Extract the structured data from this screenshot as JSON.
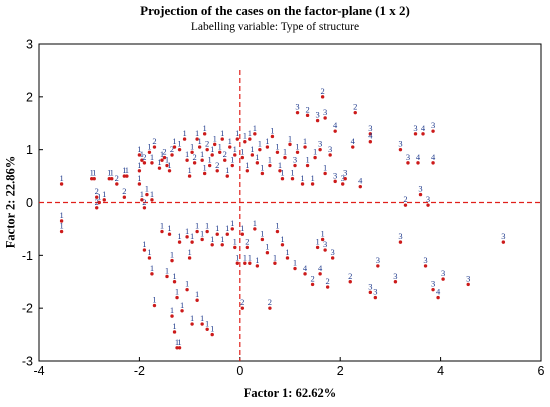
{
  "chart_data": {
    "type": "scatter",
    "title": "Projection of the cases on the factor-plane (1 x 2)",
    "subtitle": "Labelling variable: Type of structure",
    "xlabel": "Factor 1: 62.62%",
    "ylabel": "Factor 2: 22.86%",
    "xlim": [
      -4,
      6
    ],
    "ylim": [
      -3,
      3
    ],
    "xticks": [
      -4,
      -2,
      0,
      2,
      4,
      6
    ],
    "yticks": [
      -3,
      -2,
      -1,
      0,
      1,
      2,
      3
    ],
    "reference_lines": {
      "x": 0,
      "y": 0,
      "style": "dashed",
      "color": "#e0201b"
    },
    "grid": false,
    "legend": "none",
    "colors": {
      "point": "#cc1a1a",
      "label": "#1f3a8c",
      "axis": "#000000"
    },
    "points": [
      {
        "x": -3.55,
        "y": 0.35,
        "label": "1"
      },
      {
        "x": -3.55,
        "y": -0.35,
        "label": "1"
      },
      {
        "x": -3.55,
        "y": -0.55,
        "label": "1"
      },
      {
        "x": -2.95,
        "y": 0.45,
        "label": "1"
      },
      {
        "x": -2.9,
        "y": 0.45,
        "label": "1"
      },
      {
        "x": -2.85,
        "y": 0.1,
        "label": "2"
      },
      {
        "x": -2.85,
        "y": -0.1,
        "label": "2"
      },
      {
        "x": -2.8,
        "y": 0.0,
        "label": "1"
      },
      {
        "x": -2.7,
        "y": 0.05,
        "label": "1"
      },
      {
        "x": -2.6,
        "y": 0.45,
        "label": "1"
      },
      {
        "x": -2.55,
        "y": 0.45,
        "label": "1"
      },
      {
        "x": -2.45,
        "y": 0.35,
        "label": "2"
      },
      {
        "x": -2.3,
        "y": 0.1,
        "label": "2"
      },
      {
        "x": -2.3,
        "y": 0.5,
        "label": "1"
      },
      {
        "x": -2.25,
        "y": 0.5,
        "label": "1"
      },
      {
        "x": -2.0,
        "y": 0.6,
        "label": "1"
      },
      {
        "x": -2.0,
        "y": 0.35,
        "label": "1"
      },
      {
        "x": -1.95,
        "y": 0.05,
        "label": "1"
      },
      {
        "x": -1.9,
        "y": -0.1,
        "label": "2"
      },
      {
        "x": -1.85,
        "y": 0.15,
        "label": "1"
      },
      {
        "x": -2.0,
        "y": 0.9,
        "label": "1"
      },
      {
        "x": -1.95,
        "y": 0.8,
        "label": "1"
      },
      {
        "x": -1.9,
        "y": 0.75,
        "label": "2"
      },
      {
        "x": -1.75,
        "y": 0.75,
        "label": "1"
      },
      {
        "x": -1.75,
        "y": 0.05,
        "label": "1"
      },
      {
        "x": -1.8,
        "y": 0.95,
        "label": "1"
      },
      {
        "x": -1.7,
        "y": 1.05,
        "label": "2"
      },
      {
        "x": -1.6,
        "y": 0.65,
        "label": "1"
      },
      {
        "x": -1.55,
        "y": 0.8,
        "label": "1"
      },
      {
        "x": -1.5,
        "y": 0.85,
        "label": "2"
      },
      {
        "x": -1.45,
        "y": 0.7,
        "label": "1"
      },
      {
        "x": -1.4,
        "y": 0.6,
        "label": "1"
      },
      {
        "x": -1.35,
        "y": 0.9,
        "label": "2"
      },
      {
        "x": -1.3,
        "y": 1.05,
        "label": "1"
      },
      {
        "x": -1.2,
        "y": 1.0,
        "label": "1"
      },
      {
        "x": -1.1,
        "y": 1.2,
        "label": "1"
      },
      {
        "x": -1.05,
        "y": 0.8,
        "label": "1"
      },
      {
        "x": -1.0,
        "y": 0.5,
        "label": "1"
      },
      {
        "x": -0.95,
        "y": 0.95,
        "label": "1"
      },
      {
        "x": -0.9,
        "y": 0.75,
        "label": "2"
      },
      {
        "x": -0.85,
        "y": 1.2,
        "label": "1"
      },
      {
        "x": -0.8,
        "y": 1.05,
        "label": "1"
      },
      {
        "x": -0.75,
        "y": 0.8,
        "label": "1"
      },
      {
        "x": -0.7,
        "y": 0.55,
        "label": "1"
      },
      {
        "x": -0.7,
        "y": 1.3,
        "label": "1"
      },
      {
        "x": -0.65,
        "y": 1.0,
        "label": "2"
      },
      {
        "x": -0.6,
        "y": 0.7,
        "label": "1"
      },
      {
        "x": -0.55,
        "y": 0.9,
        "label": "1"
      },
      {
        "x": -0.5,
        "y": 1.1,
        "label": "1"
      },
      {
        "x": -0.45,
        "y": 0.6,
        "label": "2"
      },
      {
        "x": -0.4,
        "y": 0.95,
        "label": "1"
      },
      {
        "x": -0.35,
        "y": 1.2,
        "label": "1"
      },
      {
        "x": -0.3,
        "y": 0.8,
        "label": "2"
      },
      {
        "x": -0.25,
        "y": 0.5,
        "label": "1"
      },
      {
        "x": -0.2,
        "y": 1.05,
        "label": "1"
      },
      {
        "x": -0.15,
        "y": 0.7,
        "label": "1"
      },
      {
        "x": -0.1,
        "y": 0.9,
        "label": "1"
      },
      {
        "x": -0.05,
        "y": 1.2,
        "label": "1"
      },
      {
        "x": 0.05,
        "y": 0.85,
        "label": "1"
      },
      {
        "x": 0.1,
        "y": 1.15,
        "label": "1"
      },
      {
        "x": 0.15,
        "y": 0.6,
        "label": "1"
      },
      {
        "x": 0.2,
        "y": 1.2,
        "label": "1"
      },
      {
        "x": 0.25,
        "y": 0.9,
        "label": "1"
      },
      {
        "x": 0.3,
        "y": 1.3,
        "label": "1"
      },
      {
        "x": 0.35,
        "y": 0.75,
        "label": "1"
      },
      {
        "x": 0.4,
        "y": 1.0,
        "label": "1"
      },
      {
        "x": 0.45,
        "y": 0.55,
        "label": "1"
      },
      {
        "x": 0.55,
        "y": 1.05,
        "label": "1"
      },
      {
        "x": 0.6,
        "y": 0.7,
        "label": "1"
      },
      {
        "x": 0.65,
        "y": 1.25,
        "label": "1"
      },
      {
        "x": 0.75,
        "y": 0.95,
        "label": "1"
      },
      {
        "x": 0.8,
        "y": 0.6,
        "label": "1"
      },
      {
        "x": 0.85,
        "y": 0.45,
        "label": "1"
      },
      {
        "x": 0.9,
        "y": 0.85,
        "label": "1"
      },
      {
        "x": 1.0,
        "y": 1.1,
        "label": "1"
      },
      {
        "x": 1.05,
        "y": 0.45,
        "label": "1"
      },
      {
        "x": 1.1,
        "y": 0.7,
        "label": "3"
      },
      {
        "x": 1.15,
        "y": 0.95,
        "label": "1"
      },
      {
        "x": 1.25,
        "y": 0.35,
        "label": "1"
      },
      {
        "x": 1.3,
        "y": 1.05,
        "label": "1"
      },
      {
        "x": 1.35,
        "y": 0.7,
        "label": "1"
      },
      {
        "x": 1.45,
        "y": 0.35,
        "label": "1"
      },
      {
        "x": 1.5,
        "y": 0.85,
        "label": "1"
      },
      {
        "x": 1.6,
        "y": 1.0,
        "label": "3"
      },
      {
        "x": 1.7,
        "y": 0.55,
        "label": "1"
      },
      {
        "x": 1.8,
        "y": 0.9,
        "label": "3"
      },
      {
        "x": 1.9,
        "y": 0.4,
        "label": "3"
      },
      {
        "x": 2.05,
        "y": 0.35,
        "label": "3"
      },
      {
        "x": 2.4,
        "y": 0.3,
        "label": "4"
      },
      {
        "x": 2.1,
        "y": 0.45,
        "label": "3"
      },
      {
        "x": 1.15,
        "y": 1.7,
        "label": "3"
      },
      {
        "x": 1.35,
        "y": 1.65,
        "label": "2"
      },
      {
        "x": 1.55,
        "y": 1.55,
        "label": "3"
      },
      {
        "x": 1.7,
        "y": 1.6,
        "label": "3"
      },
      {
        "x": 1.65,
        "y": 2.0,
        "label": "2"
      },
      {
        "x": 1.9,
        "y": 1.35,
        "label": "4"
      },
      {
        "x": 2.3,
        "y": 1.7,
        "label": "2"
      },
      {
        "x": 2.25,
        "y": 1.05,
        "label": "4"
      },
      {
        "x": 2.6,
        "y": 1.3,
        "label": "3"
      },
      {
        "x": 2.6,
        "y": 1.15,
        "label": "4"
      },
      {
        "x": 3.2,
        "y": 1.0,
        "label": "3"
      },
      {
        "x": 3.35,
        "y": 0.75,
        "label": "3"
      },
      {
        "x": 3.55,
        "y": 0.75,
        "label": "4"
      },
      {
        "x": 3.85,
        "y": 0.75,
        "label": "4"
      },
      {
        "x": 3.5,
        "y": 1.3,
        "label": "3"
      },
      {
        "x": 3.65,
        "y": 1.3,
        "label": "4"
      },
      {
        "x": 3.85,
        "y": 1.35,
        "label": "3"
      },
      {
        "x": 3.6,
        "y": 0.15,
        "label": "3"
      },
      {
        "x": 3.3,
        "y": -0.05,
        "label": "2"
      },
      {
        "x": 3.75,
        "y": -0.05,
        "label": "3"
      },
      {
        "x": 3.2,
        "y": -0.75,
        "label": "3"
      },
      {
        "x": 3.7,
        "y": -1.2,
        "label": "3"
      },
      {
        "x": 3.1,
        "y": -1.5,
        "label": "3"
      },
      {
        "x": 4.05,
        "y": -1.45,
        "label": "3"
      },
      {
        "x": 4.55,
        "y": -1.55,
        "label": "3"
      },
      {
        "x": 3.85,
        "y": -1.65,
        "label": "3"
      },
      {
        "x": 3.95,
        "y": -1.8,
        "label": "4"
      },
      {
        "x": 5.25,
        "y": -0.75,
        "label": "3"
      },
      {
        "x": 2.6,
        "y": -1.7,
        "label": "3"
      },
      {
        "x": 2.7,
        "y": -1.8,
        "label": "3"
      },
      {
        "x": 2.75,
        "y": -1.2,
        "label": "3"
      },
      {
        "x": 2.2,
        "y": -1.5,
        "label": "2"
      },
      {
        "x": 1.75,
        "y": -1.6,
        "label": "2"
      },
      {
        "x": 1.6,
        "y": -1.35,
        "label": "4"
      },
      {
        "x": 1.45,
        "y": -1.55,
        "label": "2"
      },
      {
        "x": 1.3,
        "y": -1.35,
        "label": "4"
      },
      {
        "x": 1.85,
        "y": -1.05,
        "label": "3"
      },
      {
        "x": 1.7,
        "y": -0.9,
        "label": "3"
      },
      {
        "x": 1.55,
        "y": -0.85,
        "label": "1"
      },
      {
        "x": 1.65,
        "y": -0.7,
        "label": "1"
      },
      {
        "x": 1.1,
        "y": -1.25,
        "label": "1"
      },
      {
        "x": 0.95,
        "y": -1.05,
        "label": "1"
      },
      {
        "x": 0.85,
        "y": -0.8,
        "label": "1"
      },
      {
        "x": 0.75,
        "y": -0.55,
        "label": "1"
      },
      {
        "x": 0.7,
        "y": -1.15,
        "label": "1"
      },
      {
        "x": 0.55,
        "y": -0.95,
        "label": "1"
      },
      {
        "x": 0.45,
        "y": -0.7,
        "label": "1"
      },
      {
        "x": 0.35,
        "y": -1.2,
        "label": "1"
      },
      {
        "x": 0.3,
        "y": -0.5,
        "label": "1"
      },
      {
        "x": 0.2,
        "y": -1.15,
        "label": "1"
      },
      {
        "x": 0.15,
        "y": -0.85,
        "label": "2"
      },
      {
        "x": 0.1,
        "y": -1.15,
        "label": "1"
      },
      {
        "x": 0.05,
        "y": -0.6,
        "label": "1"
      },
      {
        "x": -0.05,
        "y": -1.15,
        "label": "1"
      },
      {
        "x": -0.1,
        "y": -0.85,
        "label": "1"
      },
      {
        "x": -0.15,
        "y": -0.5,
        "label": "1"
      },
      {
        "x": -0.25,
        "y": -0.6,
        "label": "1"
      },
      {
        "x": -0.35,
        "y": -0.8,
        "label": "1"
      },
      {
        "x": -0.45,
        "y": -0.6,
        "label": "1"
      },
      {
        "x": -0.55,
        "y": -0.8,
        "label": "1"
      },
      {
        "x": -0.65,
        "y": -0.55,
        "label": "1"
      },
      {
        "x": -0.75,
        "y": -0.7,
        "label": "1"
      },
      {
        "x": -0.85,
        "y": -0.55,
        "label": "1"
      },
      {
        "x": -0.95,
        "y": -0.75,
        "label": "1"
      },
      {
        "x": -1.05,
        "y": -0.65,
        "label": "1"
      },
      {
        "x": -1.2,
        "y": -0.75,
        "label": "1"
      },
      {
        "x": -1.4,
        "y": -0.6,
        "label": "1"
      },
      {
        "x": -1.55,
        "y": -0.55,
        "label": "1"
      },
      {
        "x": -1.9,
        "y": -0.9,
        "label": "1"
      },
      {
        "x": -1.8,
        "y": -1.05,
        "label": "1"
      },
      {
        "x": -1.75,
        "y": -1.35,
        "label": "1"
      },
      {
        "x": -1.7,
        "y": -1.95,
        "label": "1"
      },
      {
        "x": -1.45,
        "y": -1.4,
        "label": "1"
      },
      {
        "x": -1.35,
        "y": -1.1,
        "label": "1"
      },
      {
        "x": -1.3,
        "y": -1.5,
        "label": "1"
      },
      {
        "x": -1.25,
        "y": -1.8,
        "label": "1"
      },
      {
        "x": -1.35,
        "y": -2.15,
        "label": "1"
      },
      {
        "x": -1.3,
        "y": -2.45,
        "label": "1"
      },
      {
        "x": -1.25,
        "y": -2.75,
        "label": "1"
      },
      {
        "x": -1.2,
        "y": -2.75,
        "label": "1"
      },
      {
        "x": -1.15,
        "y": -2.05,
        "label": "1"
      },
      {
        "x": -1.05,
        "y": -1.65,
        "label": "1"
      },
      {
        "x": -0.95,
        "y": -2.3,
        "label": "1"
      },
      {
        "x": -0.85,
        "y": -1.85,
        "label": "1"
      },
      {
        "x": -0.75,
        "y": -2.3,
        "label": "1"
      },
      {
        "x": -0.65,
        "y": -2.4,
        "label": "1"
      },
      {
        "x": -0.55,
        "y": -2.5,
        "label": "1"
      },
      {
        "x": -1.0,
        "y": -1.05,
        "label": "1"
      },
      {
        "x": 0.05,
        "y": -2.0,
        "label": "2"
      },
      {
        "x": 0.6,
        "y": -2.0,
        "label": "2"
      }
    ]
  }
}
